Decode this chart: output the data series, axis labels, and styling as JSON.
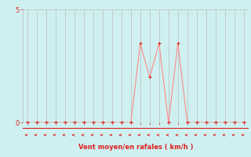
{
  "x": [
    0,
    1,
    2,
    3,
    4,
    5,
    6,
    7,
    8,
    9,
    10,
    11,
    12,
    13,
    14,
    15,
    16,
    17,
    18,
    19,
    20,
    21,
    22,
    23
  ],
  "y": [
    0,
    0,
    0,
    0,
    0,
    0,
    0,
    0,
    0,
    0,
    0,
    0,
    3.5,
    2.0,
    3.5,
    0,
    3.5,
    0,
    0,
    0,
    0,
    0,
    0,
    0
  ],
  "xlabel": "Vent moyen/en rafales ( km/h )",
  "bg_color": "#cff0f0",
  "line_color": "#ff8888",
  "marker_color": "#dd2222",
  "grid_color": "#bbbbbb",
  "tick_color": "#dd2222",
  "xlabel_color": "#dd2222",
  "arrow_color": "#dd2222",
  "ylim": [
    0,
    5
  ],
  "xlim": [
    -0.5,
    23.5
  ],
  "yticks": [
    0,
    5
  ],
  "xticks": [
    0,
    1,
    2,
    3,
    4,
    5,
    6,
    7,
    8,
    9,
    10,
    11,
    12,
    13,
    14,
    15,
    16,
    17,
    18,
    19,
    20,
    21,
    22,
    23
  ]
}
